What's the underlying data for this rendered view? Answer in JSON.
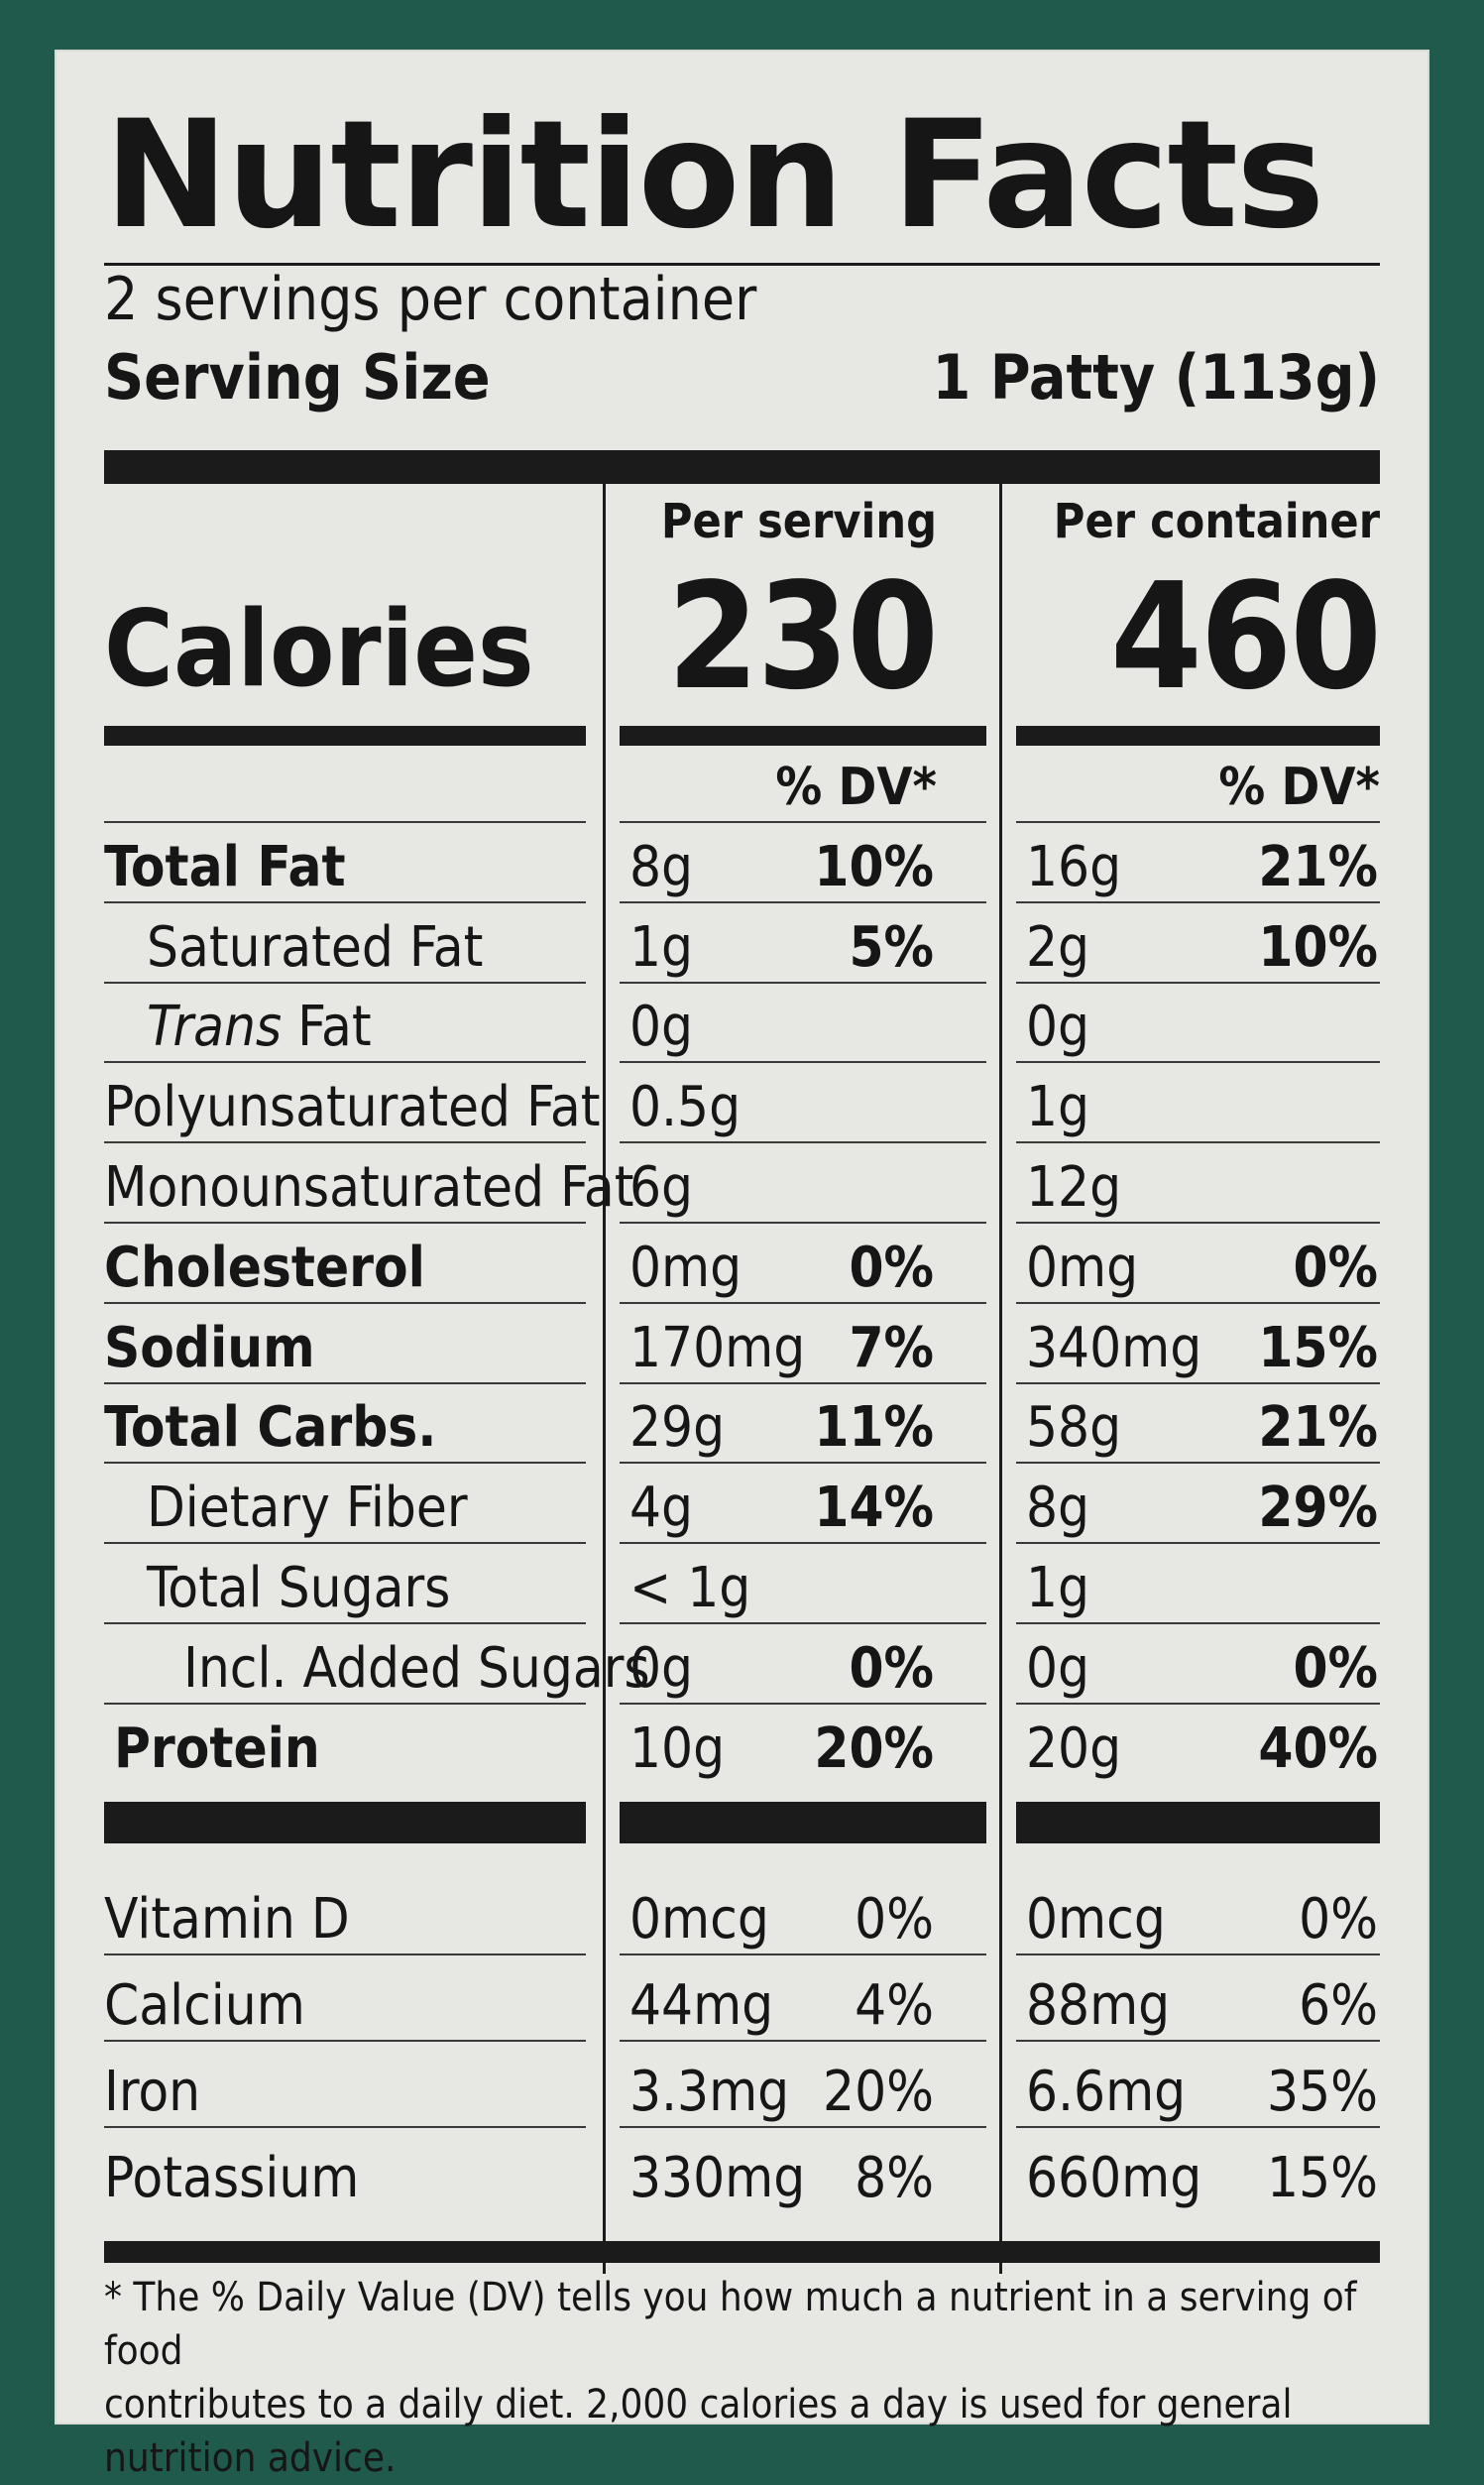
{
  "title": "Nutrition Facts",
  "servings_per_container": "2 servings per container",
  "serving_size_label": "Serving Size",
  "serving_size_value": "1 Patty (113g)",
  "per_serving_label": "Per serving",
  "per_container_label": "Per container",
  "calories_label": "Calories",
  "calories_per_serving": "230",
  "calories_per_container": "460",
  "dv_header": "% DV*",
  "nutrients": [
    {
      "name": "Total Fat",
      "style": "bold",
      "indent": 0,
      "serving_amount": "8g",
      "serving_dv": "10%",
      "container_amount": "16g",
      "container_dv": "21%"
    },
    {
      "name": "Saturated Fat",
      "style": "normal",
      "indent": 1,
      "serving_amount": "1g",
      "serving_dv": "5%",
      "container_amount": "2g",
      "container_dv": "10%"
    },
    {
      "name_italic": "Trans",
      "name": " Fat",
      "style": "normal",
      "indent": 1,
      "serving_amount": "0g",
      "serving_dv": "",
      "container_amount": "0g",
      "container_dv": ""
    },
    {
      "name": "Polyunsaturated Fat",
      "style": "normal",
      "indent": 0,
      "serving_amount": "0.5g",
      "serving_dv": "",
      "container_amount": "1g",
      "container_dv": ""
    },
    {
      "name": "Monounsaturated Fat",
      "style": "normal",
      "indent": 0,
      "serving_amount": "6g",
      "serving_dv": "",
      "container_amount": "12g",
      "container_dv": ""
    },
    {
      "name": "Cholesterol",
      "style": "bold",
      "indent": 0,
      "serving_amount": "0mg",
      "serving_dv": "0%",
      "container_amount": "0mg",
      "container_dv": "0%"
    },
    {
      "name": "Sodium",
      "style": "bold",
      "indent": 0,
      "serving_amount": "170mg",
      "serving_dv": "7%",
      "container_amount": "340mg",
      "container_dv": "15%"
    },
    {
      "name": "Total Carbs.",
      "style": "bold",
      "indent": 0,
      "serving_amount": "29g",
      "serving_dv": "11%",
      "container_amount": "58g",
      "container_dv": "21%"
    },
    {
      "name": "Dietary Fiber",
      "style": "normal",
      "indent": 1,
      "serving_amount": "4g",
      "serving_dv": "14%",
      "container_amount": "8g",
      "container_dv": "29%"
    },
    {
      "name": "Total Sugars",
      "style": "normal",
      "indent": 1,
      "serving_amount": "< 1g",
      "serving_dv": "",
      "container_amount": "1g",
      "container_dv": ""
    },
    {
      "name": "Incl. Added Sugars",
      "style": "normal",
      "indent": 2,
      "serving_amount": "0g",
      "serving_dv": "0%",
      "container_amount": "0g",
      "container_dv": "0%"
    },
    {
      "name": "Protein",
      "style": "bold",
      "indent": 0,
      "serving_amount": "10g",
      "serving_dv": "20%",
      "container_amount": "20g",
      "container_dv": "40%"
    }
  ],
  "vitamins": [
    {
      "name": "Vitamin D",
      "serving_amount": "0mcg",
      "serving_dv": "0%",
      "container_amount": "0mcg",
      "container_dv": "0%"
    },
    {
      "name": "Calcium",
      "serving_amount": "44mg",
      "serving_dv": "4%",
      "container_amount": "88mg",
      "container_dv": "6%"
    },
    {
      "name": "Iron",
      "serving_amount": "3.3mg",
      "serving_dv": "20%",
      "container_amount": "6.6mg",
      "container_dv": "35%"
    },
    {
      "name": "Potassium",
      "serving_amount": "330mg",
      "serving_dv": "8%",
      "container_amount": "660mg",
      "container_dv": "15%"
    }
  ],
  "footnote_line1": "* The % Daily Value (DV) tells you how much a nutrient in a serving of food",
  "footnote_line2": "contributes to a daily diet. 2,000 calories a day is used for general nutrition advice.",
  "colors": {
    "border": "#1f5a4c",
    "panel": "#e7e8e4",
    "ink": "#161616"
  }
}
